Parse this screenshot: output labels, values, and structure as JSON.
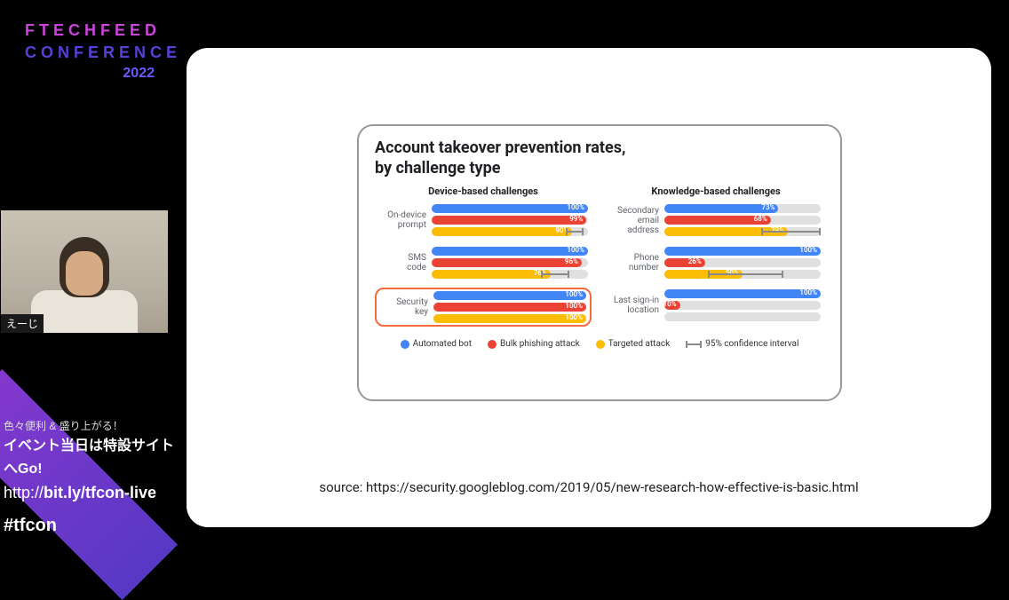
{
  "branding": {
    "line1": "FTECHFEED",
    "line2": "CONFERENCE",
    "year": "2022"
  },
  "webcam": {
    "name_label": "えーじ"
  },
  "promo": {
    "line1": "色々便利 & 盛り上がる！",
    "line2": "イベント当日は特設サイトへGo!",
    "url_prefix": "http://",
    "url_domain": "bit.ly/tfcon-live",
    "hashtag": "#tfcon"
  },
  "slide": {
    "chart_title_l1": "Account takeover prevention rates,",
    "chart_title_l2": "by challenge type",
    "col1_header": "Device-based challenges",
    "col2_header": "Knowledge-based challenges",
    "colors": {
      "automated_bot": "#4285f4",
      "bulk_phishing": "#ea4335",
      "targeted": "#fbbc04",
      "track": "#e0e0e0",
      "ci": "#8a8a8a"
    },
    "device_rows": [
      {
        "label_l1": "On-device",
        "label_l2": "prompt",
        "bars": [
          {
            "color": "blue",
            "value": 100,
            "text": "100%",
            "ci": null
          },
          {
            "color": "red",
            "value": 99,
            "text": "99%",
            "ci": null
          },
          {
            "color": "yellow",
            "value": 90,
            "text": "90%",
            "ci": [
              86,
              97
            ]
          }
        ]
      },
      {
        "label_l1": "SMS",
        "label_l2": "code",
        "bars": [
          {
            "color": "blue",
            "value": 100,
            "text": "100%",
            "ci": null
          },
          {
            "color": "red",
            "value": 96,
            "text": "96%",
            "ci": null
          },
          {
            "color": "yellow",
            "value": 76,
            "text": "76%",
            "ci": [
              70,
              88
            ]
          }
        ]
      },
      {
        "label_l1": "Security",
        "label_l2": "key",
        "highlight": true,
        "bars": [
          {
            "color": "blue",
            "value": 100,
            "text": "100%",
            "ci": null
          },
          {
            "color": "red",
            "value": 100,
            "text": "100%",
            "ci": null
          },
          {
            "color": "yellow",
            "value": 100,
            "text": "100%",
            "ci": null
          }
        ]
      }
    ],
    "knowledge_rows": [
      {
        "label_l1": "Secondary",
        "label_l2": "email address",
        "bars": [
          {
            "color": "blue",
            "value": 73,
            "text": "73%",
            "ci": null
          },
          {
            "color": "red",
            "value": 68,
            "text": "68%",
            "ci": null
          },
          {
            "color": "yellow",
            "value": 79,
            "text": "79%",
            "ci": [
              62,
              100
            ]
          }
        ]
      },
      {
        "label_l1": "Phone",
        "label_l2": "number",
        "bars": [
          {
            "color": "blue",
            "value": 100,
            "text": "100%",
            "ci": null
          },
          {
            "color": "red",
            "value": 26,
            "text": "26%",
            "ci": null
          },
          {
            "color": "yellow",
            "value": 50,
            "text": "50%",
            "ci": [
              28,
              76
            ]
          }
        ]
      },
      {
        "label_l1": "Last sign-in",
        "label_l2": "location",
        "bars": [
          {
            "color": "blue",
            "value": 100,
            "text": "100%",
            "ci": null
          },
          {
            "color": "red",
            "value": 10,
            "text": "10%",
            "ci": null
          },
          {
            "color": "yellow",
            "value": 0,
            "text": "",
            "ci": null
          }
        ]
      }
    ],
    "legend": {
      "automated": "Automated bot",
      "phishing": "Bulk phishing attack",
      "targeted": "Targeted attack",
      "ci": "95% confidence interval"
    },
    "source": "source: https://security.googleblog.com/2019/05/new-research-how-effective-is-basic.html"
  }
}
